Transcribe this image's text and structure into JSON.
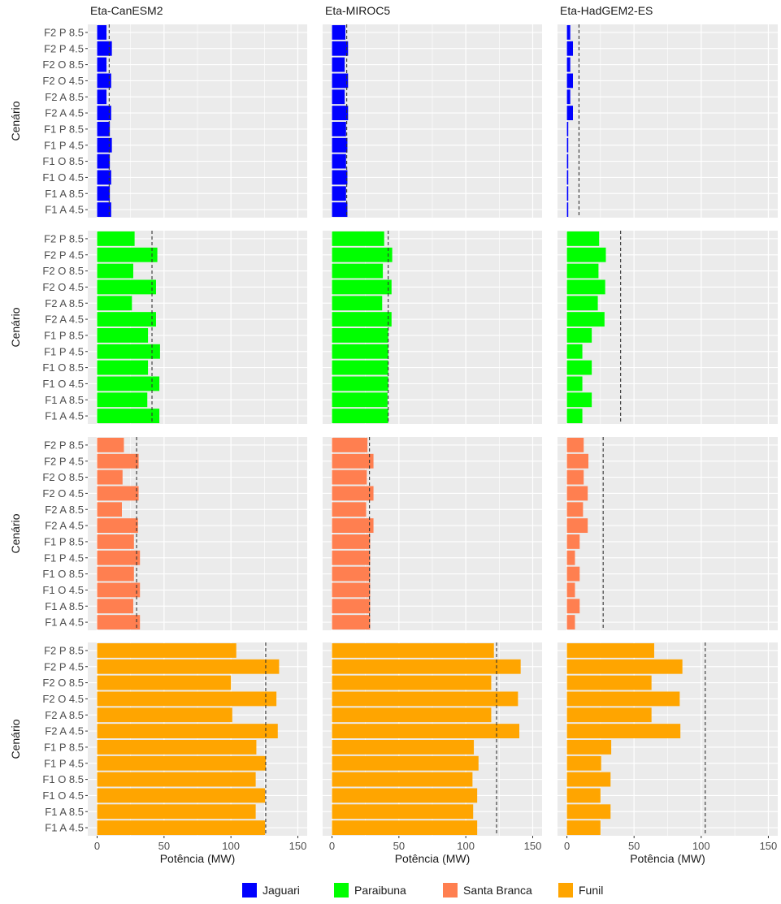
{
  "chart_data": {
    "type": "bar",
    "orientation": "horizontal",
    "facet_columns": [
      "Eta-CanESM2",
      "Eta-MIROC5",
      "Eta-HadGEM2-ES"
    ],
    "facet_rows": [
      "Jaguari",
      "Paraibuna",
      "Santa Branca",
      "Funil"
    ],
    "categories": [
      "F2 P 8.5",
      "F2 P 4.5",
      "F2 O 8.5",
      "F2 O 4.5",
      "F2 A 8.5",
      "F2 A 4.5",
      "F1 P 8.5",
      "F1 P 4.5",
      "F1 O 8.5",
      "F1 O 4.5",
      "F1 A 8.5",
      "F1 A 4.5"
    ],
    "xlabel": "Potência (MW)",
    "ylabel": "Cenário",
    "xlim": [
      -7,
      157
    ],
    "xticks": [
      0,
      50,
      100,
      150
    ],
    "grid": true,
    "legend": {
      "position": "bottom",
      "entries": [
        "Jaguari",
        "Paraibuna",
        "Santa Branca",
        "Funil"
      ]
    },
    "colors": {
      "Jaguari": "#0000ff",
      "Paraibuna": "#00ff00",
      "Santa Branca": "#ff7f50",
      "Funil": "#ffa500",
      "panel_bg": "#ebebeb",
      "grid": "#ffffff",
      "ref_line": "#333333"
    },
    "panels": [
      {
        "reservoir": "Jaguari",
        "model": "Eta-CanESM2",
        "reference": 9,
        "values": [
          7,
          11,
          7,
          10.5,
          7,
          10.5,
          9.5,
          11,
          9.5,
          10.5,
          9.5,
          10.5
        ]
      },
      {
        "reservoir": "Jaguari",
        "model": "Eta-MIROC5",
        "reference": 11,
        "values": [
          10,
          12,
          9.5,
          12,
          9.5,
          12,
          10.5,
          11.5,
          10.5,
          11.5,
          10.5,
          11.5
        ]
      },
      {
        "reservoir": "Jaguari",
        "model": "Eta-HadGEM2-ES",
        "reference": 9,
        "values": [
          2.5,
          4.5,
          2.5,
          4.5,
          2.5,
          4.5,
          1,
          1,
          1,
          1,
          1,
          1
        ]
      },
      {
        "reservoir": "Paraibuna",
        "model": "Eta-CanESM2",
        "reference": 41,
        "values": [
          28,
          45,
          27,
          44,
          26,
          44,
          38,
          47,
          38,
          46.5,
          37.5,
          46.5
        ]
      },
      {
        "reservoir": "Paraibuna",
        "model": "Eta-MIROC5",
        "reference": 42,
        "values": [
          39,
          45,
          38,
          44.5,
          37.5,
          44.5,
          42,
          42,
          42,
          42,
          41.5,
          42
        ]
      },
      {
        "reservoir": "Paraibuna",
        "model": "Eta-HadGEM2-ES",
        "reference": 40,
        "values": [
          24,
          29,
          23.5,
          28.5,
          23,
          28,
          18.5,
          11.5,
          18.5,
          11.5,
          18.5,
          11.5
        ]
      },
      {
        "reservoir": "Santa Branca",
        "model": "Eta-CanESM2",
        "reference": 29.5,
        "values": [
          20,
          31,
          19,
          31,
          18.5,
          30.5,
          27.5,
          32,
          27.5,
          32,
          27,
          32
        ]
      },
      {
        "reservoir": "Santa Branca",
        "model": "Eta-MIROC5",
        "reference": 28,
        "values": [
          26.5,
          31,
          26,
          31,
          25.5,
          31,
          28.5,
          28.5,
          28.5,
          28.5,
          28.5,
          28.5
        ]
      },
      {
        "reservoir": "Santa Branca",
        "model": "Eta-HadGEM2-ES",
        "reference": 27,
        "values": [
          12.5,
          16,
          12.5,
          15.5,
          12,
          15.5,
          9.5,
          6,
          9.5,
          6,
          9.5,
          6
        ]
      },
      {
        "reservoir": "Funil",
        "model": "Eta-CanESM2",
        "reference": 126,
        "values": [
          104,
          136,
          100,
          134,
          101,
          135,
          119,
          126,
          118.5,
          125.5,
          118.5,
          125.5
        ]
      },
      {
        "reservoir": "Funil",
        "model": "Eta-MIROC5",
        "reference": 123,
        "values": [
          121,
          141,
          119,
          139,
          119,
          140,
          106,
          109.5,
          105,
          108.5,
          105.5,
          108.5
        ]
      },
      {
        "reservoir": "Funil",
        "model": "Eta-HadGEM2-ES",
        "reference": 103,
        "values": [
          65,
          86,
          63,
          84,
          63,
          84.5,
          33,
          25.5,
          32.5,
          25,
          32.5,
          25
        ]
      }
    ]
  }
}
